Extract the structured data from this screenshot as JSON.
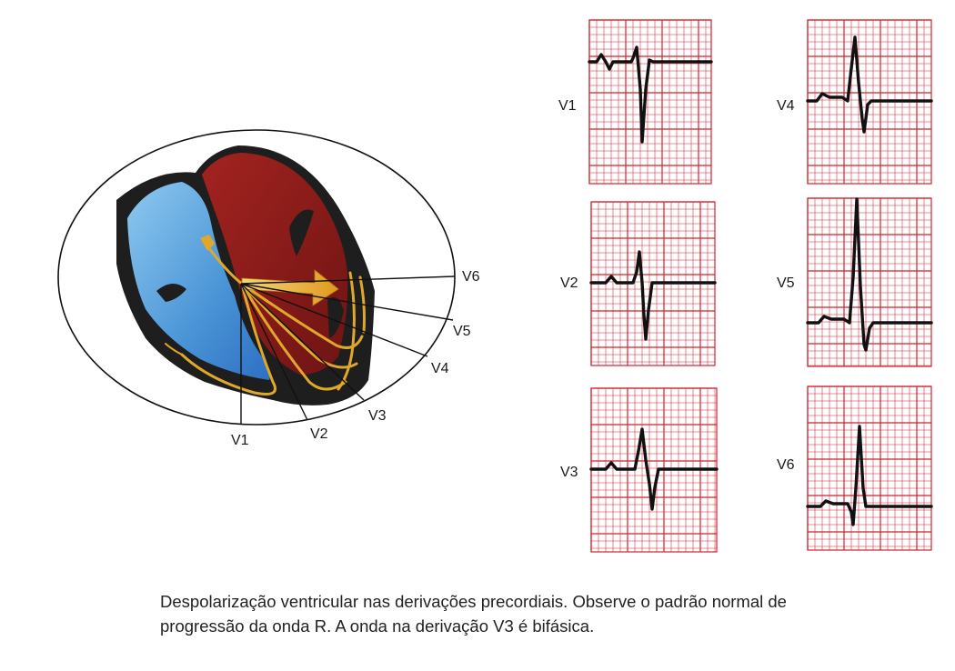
{
  "heart_leads": [
    "V1",
    "V2",
    "V3",
    "V4",
    "V5",
    "V6"
  ],
  "ecg_panels": [
    {
      "label": "V1",
      "name": "ecg-panel-v1"
    },
    {
      "label": "V2",
      "name": "ecg-panel-v2"
    },
    {
      "label": "V3",
      "name": "ecg-panel-v3"
    },
    {
      "label": "V4",
      "name": "ecg-panel-v4"
    },
    {
      "label": "V5",
      "name": "ecg-panel-v5"
    },
    {
      "label": "V6",
      "name": "ecg-panel-v6"
    }
  ],
  "caption": {
    "line1": "Despolarização ventricular nas derivações precordiais. Observe o padrão normal de",
    "line2": "progressão da onda R. A onda na derivação V3 é bifásica."
  },
  "colors": {
    "grid": "#d4202e",
    "trace": "#111111",
    "right_ventricle": "#5ea8e2",
    "left_ventricle": "#8e1a1a",
    "conduction": "#e0a82a",
    "arrow": "#e8a628"
  }
}
